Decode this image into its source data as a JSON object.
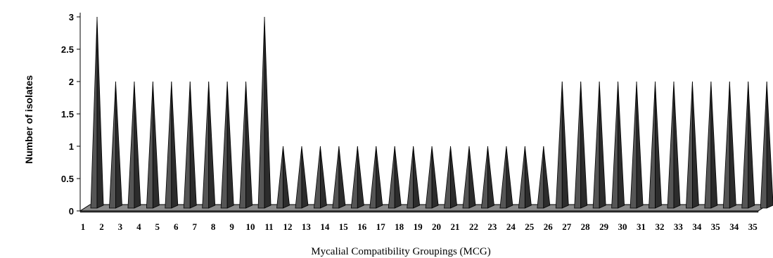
{
  "chart_data": {
    "type": "bar",
    "title": "",
    "xlabel": "Mycalial Compatibility Groupings (MCG)",
    "ylabel": "Number of isolates",
    "ylim": [
      0,
      3
    ],
    "yticks": [
      "0",
      "0.5",
      "1",
      "1.5",
      "2",
      "2.5",
      "3"
    ],
    "grid": false,
    "legend": "none",
    "categories": [
      "1",
      "2",
      "3",
      "4",
      "5",
      "6",
      "7",
      "8",
      "9",
      "10",
      "11",
      "12",
      "13",
      "14",
      "15",
      "16",
      "17",
      "18",
      "19",
      "20",
      "21",
      "22",
      "23",
      "24",
      "25",
      "26",
      "27",
      "28",
      "29",
      "30",
      "31",
      "32",
      "33",
      "34",
      "35",
      "34",
      "35"
    ],
    "values": [
      3,
      2,
      2,
      2,
      2,
      2,
      2,
      2,
      2,
      3,
      1,
      1,
      1,
      1,
      1,
      1,
      1,
      1,
      1,
      1,
      1,
      1,
      1,
      1,
      1,
      2,
      2,
      2,
      2,
      2,
      2,
      2,
      2,
      2,
      2,
      2,
      2
    ],
    "bar_color": "#555555",
    "floor_color": "#8a8a8a"
  }
}
